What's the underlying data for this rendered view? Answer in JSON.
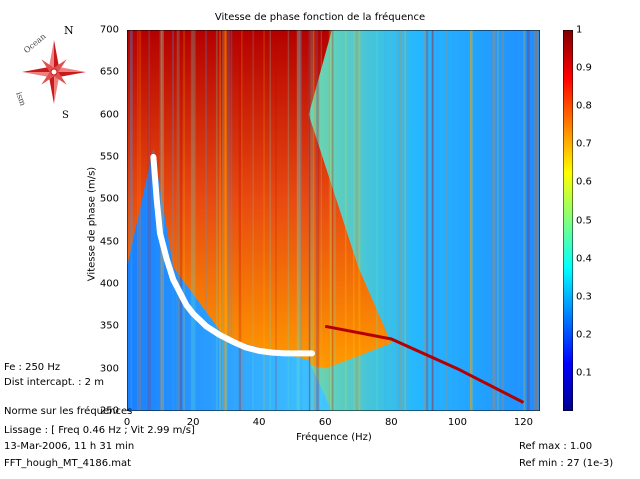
{
  "chart_data": {
    "type": "heatmap",
    "title": "Vitesse de phase fonction de la fréquence",
    "xlabel": "Fréquence (Hz)",
    "ylabel": "Vitesse de phase (m/s)",
    "xlim": [
      0,
      125
    ],
    "ylim": [
      250,
      700
    ],
    "xticks": [
      "0",
      "20",
      "40",
      "60",
      "80",
      "100",
      "120"
    ],
    "yticks": [
      "250",
      "300",
      "350",
      "400",
      "450",
      "500",
      "550",
      "600",
      "650",
      "700"
    ],
    "colorbar": {
      "range": [
        0,
        1
      ],
      "ticks": [
        "0.1",
        "0.2",
        "0.3",
        "0.4",
        "0.5",
        "0.6",
        "0.7",
        "0.8",
        "0.9",
        "1"
      ],
      "colormap": "jet"
    },
    "picked_curve": {
      "color": "#ffffff",
      "x": [
        8,
        9,
        10,
        12,
        14,
        16,
        18,
        20,
        24,
        28,
        32,
        36,
        40,
        44,
        48,
        52,
        56
      ],
      "y": [
        550,
        500,
        460,
        430,
        405,
        390,
        375,
        365,
        350,
        340,
        332,
        325,
        321,
        319,
        318,
        318,
        318
      ]
    },
    "linear_streak": {
      "x": [
        60,
        80,
        100,
        120
      ],
      "y": [
        350,
        335,
        300,
        260
      ]
    }
  },
  "compass": {
    "N": "N",
    "S": "S",
    "arc": "Ocean",
    "arc2": "ism"
  },
  "info": {
    "fe": "Fe : 250 Hz",
    "dist": "Dist intercapt. : 2 m",
    "norme": "Norme sur les fréquences",
    "lissage": "Lissage : [ Freq 0.46 Hz ; Vit 2.99 m/s]",
    "date": "13-Mar-2006,  11 h 31 min",
    "file": "FFT_hough_MT_4186.mat",
    "refmax": "Ref max :  1.00",
    "refmin": "Ref min : 27 (1e-3)"
  }
}
